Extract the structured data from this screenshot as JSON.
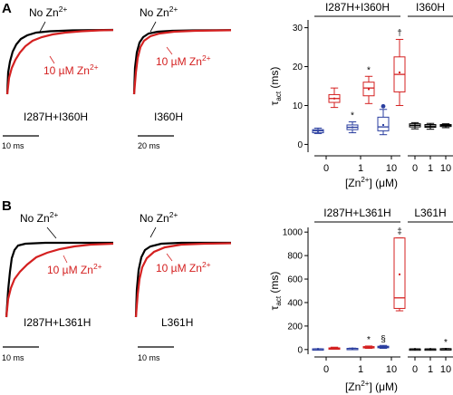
{
  "figure": {
    "panels": [
      {
        "letter": "A",
        "traces": [
          {
            "construct": "I287H+I360H",
            "no_zn_label": "No Zn",
            "zn_label": "10 µM Zn",
            "zn_sup": "2+",
            "scale_bar": "10 ms",
            "colors": {
              "control": "#000000",
              "zinc": "#d42020"
            }
          },
          {
            "construct": "I360H",
            "no_zn_label": "No Zn",
            "zn_label": "10 µM Zn",
            "zn_sup": "2+",
            "scale_bar": "20 ms",
            "colors": {
              "control": "#000000",
              "zinc": "#d42020"
            }
          }
        ]
      },
      {
        "letter": "B",
        "traces": [
          {
            "construct": "I287H+L361H",
            "no_zn_label": "No Zn",
            "zn_label": "10 µM Zn",
            "zn_sup": "2+",
            "scale_bar": "10 ms",
            "colors": {
              "control": "#000000",
              "zinc": "#d42020"
            }
          },
          {
            "construct": "L361H",
            "no_zn_label": "No Zn",
            "zn_label": "10 µM Zn",
            "zn_sup": "2+",
            "scale_bar": "10 ms",
            "colors": {
              "control": "#000000",
              "zinc": "#d42020"
            }
          }
        ]
      }
    ]
  },
  "chart_data": [
    {
      "type": "box",
      "panel": "A",
      "ylabel_main": "τ",
      "ylabel_sub": "act",
      "ylabel_unit": "(ms)",
      "ylim": [
        -2,
        32
      ],
      "yticks": [
        0,
        10,
        20,
        30
      ],
      "xlabel_pre": "[Zn",
      "xlabel_sup": "2+",
      "xlabel_post": "] (μM)",
      "colors": {
        "open": "#d42020",
        "closed": "#2b3fa0",
        "neutral": "#000000"
      },
      "groups": [
        {
          "name": "I287H+I360H",
          "categories": [
            "0",
            "1",
            "10"
          ],
          "boxes": [
            {
              "cat": "0",
              "color": "closed",
              "whisker": [
                2.8,
                4.2
              ],
              "q": [
                3.0,
                3.5,
                3.8
              ],
              "mean": 3.4,
              "mark": "",
              "outliers": []
            },
            {
              "cat": "0",
              "color": "open",
              "whisker": [
                9.5,
                14.5
              ],
              "q": [
                10.8,
                11.8,
                12.8
              ],
              "mean": 11.8,
              "mark": "",
              "outliers": []
            },
            {
              "cat": "1",
              "color": "closed",
              "whisker": [
                3.0,
                5.8
              ],
              "q": [
                3.8,
                4.4,
                5.0
              ],
              "mean": 4.4,
              "mark": "*",
              "outliers": []
            },
            {
              "cat": "1",
              "color": "open",
              "whisker": [
                10.5,
                17.5
              ],
              "q": [
                12.5,
                14.5,
                16.0
              ],
              "mean": 14.2,
              "mark": "*",
              "outliers": []
            },
            {
              "cat": "10",
              "color": "closed",
              "whisker": [
                2.5,
                9.0
              ],
              "q": [
                3.5,
                4.5,
                7.0
              ],
              "mean": 5.0,
              "mark": "",
              "outliers": [
                9.8
              ]
            },
            {
              "cat": "10",
              "color": "open",
              "whisker": [
                10.0,
                27.0
              ],
              "q": [
                13.5,
                18.0,
                22.5
              ],
              "mean": 18.5,
              "mark": "†",
              "outliers": []
            }
          ]
        },
        {
          "name": "I360H",
          "categories": [
            "0",
            "1",
            "10"
          ],
          "boxes": [
            {
              "cat": "0",
              "color": "neutral",
              "whisker": [
                4.0,
                5.6
              ],
              "q": [
                4.5,
                4.9,
                5.3
              ],
              "mean": 4.9,
              "mark": "",
              "outliers": []
            },
            {
              "cat": "1",
              "color": "neutral",
              "whisker": [
                3.9,
                5.4
              ],
              "q": [
                4.4,
                4.7,
                5.1
              ],
              "mean": 4.7,
              "mark": "",
              "outliers": []
            },
            {
              "cat": "10",
              "color": "neutral",
              "whisker": [
                4.3,
                5.3
              ],
              "q": [
                4.6,
                4.9,
                5.1
              ],
              "mean": 4.9,
              "mark": "",
              "outliers": []
            }
          ]
        }
      ]
    },
    {
      "type": "box",
      "panel": "B",
      "ylabel_main": "τ",
      "ylabel_sub": "act",
      "ylabel_unit": "(ms)",
      "ylim": [
        -40,
        1040
      ],
      "yticks": [
        0,
        200,
        400,
        600,
        800,
        1000
      ],
      "xlabel_pre": "[Zn",
      "xlabel_sup": "2+",
      "xlabel_post": "] (μM)",
      "colors": {
        "open": "#d42020",
        "closed": "#2b3fa0",
        "neutral": "#000000"
      },
      "groups": [
        {
          "name": "I287H+L361H",
          "categories": [
            "0",
            "1",
            "10"
          ],
          "boxes": [
            {
              "cat": "0",
              "color": "closed",
              "whisker": [
                3,
                7
              ],
              "q": [
                4,
                5,
                6
              ],
              "mean": 5,
              "mark": "",
              "outliers": []
            },
            {
              "cat": "0",
              "color": "open",
              "whisker": [
                5,
                20
              ],
              "q": [
                8,
                11,
                14
              ],
              "mean": 11,
              "mark": "",
              "outliers": []
            },
            {
              "cat": "1",
              "color": "closed",
              "whisker": [
                5,
                12
              ],
              "q": [
                7,
                9,
                10
              ],
              "mean": 9,
              "mark": "",
              "outliers": []
            },
            {
              "cat": "1",
              "color": "open",
              "whisker": [
                10,
                30
              ],
              "q": [
                15,
                20,
                25
              ],
              "mean": 20,
              "mark": "*",
              "outliers": []
            },
            {
              "cat": "10",
              "color": "closed",
              "whisker": [
                10,
                35
              ],
              "q": [
                15,
                22,
                28
              ],
              "mean": 22,
              "mark": "§",
              "outliers": []
            },
            {
              "cat": "10",
              "color": "open",
              "whisker": [
                330,
                950
              ],
              "q": [
                350,
                440,
                950
              ],
              "mean": 640,
              "mark": "‡",
              "outliers": []
            }
          ]
        },
        {
          "name": "L361H",
          "categories": [
            "0",
            "1",
            "10"
          ],
          "boxes": [
            {
              "cat": "0",
              "color": "neutral",
              "whisker": [
                3,
                6
              ],
              "q": [
                4,
                4.5,
                5
              ],
              "mean": 4.5,
              "mark": "",
              "outliers": []
            },
            {
              "cat": "1",
              "color": "neutral",
              "whisker": [
                3,
                6
              ],
              "q": [
                4,
                4.5,
                5
              ],
              "mean": 4.5,
              "mark": "",
              "outliers": []
            },
            {
              "cat": "10",
              "color": "neutral",
              "whisker": [
                4,
                8
              ],
              "q": [
                5,
                6,
                7
              ],
              "mean": 6,
              "mark": "*",
              "outliers": []
            }
          ]
        }
      ]
    }
  ]
}
